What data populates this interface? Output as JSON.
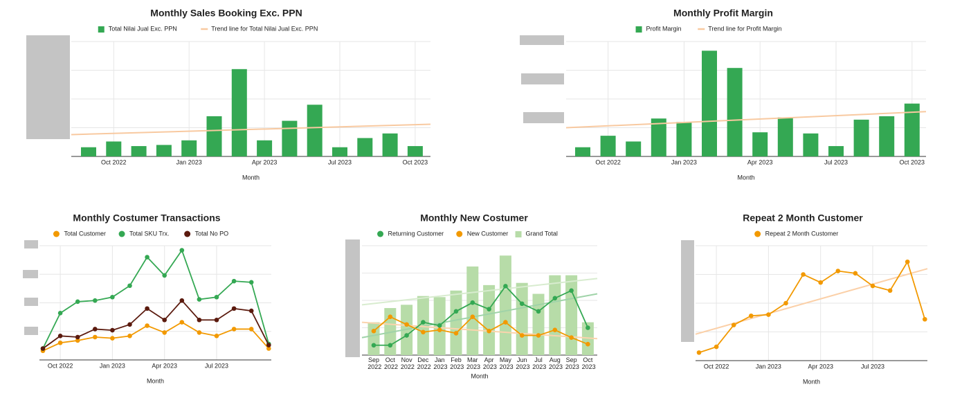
{
  "chart_data": [
    {
      "type": "bar",
      "title": "Monthly Sales Booking Exc. PPN",
      "x_label": "Month",
      "categories": [
        null,
        "Oct 2022",
        null,
        null,
        "Jan 2023",
        null,
        null,
        "Apr 2023",
        null,
        null,
        "Jul 2023",
        null,
        null,
        "Oct 2023"
      ],
      "series": [
        {
          "name": "Total Nilai Jual Exc. PPN",
          "color": "#34a853",
          "values": [
            8,
            13,
            9,
            10,
            14,
            35,
            76,
            14,
            31,
            45,
            8,
            16,
            20,
            9
          ]
        }
      ],
      "trendlines": [
        {
          "name": "Trend line for Total Nilai Jual Exc. PPN",
          "color": "#f8c9a0",
          "values": [
            19,
            28
          ]
        }
      ],
      "ylim": [
        0,
        100
      ]
    },
    {
      "type": "bar",
      "title": "Monthly Profit Margin",
      "x_label": "Month",
      "categories": [
        null,
        "Oct 2022",
        null,
        null,
        "Jan 2023",
        null,
        null,
        "Apr 2023",
        null,
        null,
        "Jul 2023",
        null,
        null,
        "Oct 2023"
      ],
      "series": [
        {
          "name": "Profit Margin",
          "color": "#34a853",
          "values": [
            8,
            18,
            13,
            33,
            30,
            92,
            77,
            21,
            34,
            20,
            9,
            32,
            35,
            46
          ]
        }
      ],
      "trendlines": [
        {
          "name": "Trend line for Profit Margin",
          "color": "#f8c9a0",
          "values": [
            25,
            39
          ]
        }
      ],
      "ylim": [
        0,
        100
      ]
    },
    {
      "type": "line",
      "title": "Monthly Costumer Transactions",
      "x_label": "Month",
      "categories": [
        null,
        "Oct 2022",
        null,
        null,
        "Jan 2023",
        null,
        null,
        "Apr 2023",
        null,
        null,
        "Jul 2023",
        null,
        null,
        null
      ],
      "series": [
        {
          "name": "Total Customer",
          "color": "#f29900",
          "values": [
            8,
            15,
            17,
            20,
            19,
            21,
            30,
            24,
            33,
            24,
            21,
            27,
            27,
            10
          ]
        },
        {
          "name": "Total SKU Trx.",
          "color": "#34a853",
          "values": [
            10,
            41,
            51,
            52,
            55,
            65,
            90,
            74,
            96,
            53,
            55,
            69,
            68,
            14
          ]
        },
        {
          "name": "Total No PO",
          "color": "#5b1a0e",
          "values": [
            10,
            21,
            20,
            27,
            26,
            31,
            45,
            35,
            52,
            35,
            35,
            45,
            43,
            13
          ]
        }
      ],
      "trendlines": [],
      "ylim": [
        0,
        100
      ]
    },
    {
      "type": "combo",
      "title": "Monthly New Costumer",
      "x_label": "Month",
      "categories": [
        "Sep 2022",
        "Oct 2022",
        "Nov 2022",
        "Dec 2022",
        "Jan 2023",
        "Feb 2023",
        "Mar 2023",
        "Apr 2023",
        "May 2023",
        "Jun 2023",
        "Jul 2023",
        "Aug 2023",
        "Sep 2023",
        "Oct 2023"
      ],
      "series": [
        {
          "name": "Returning Customer",
          "color": "#34a853",
          "mark": "line",
          "values": [
            9,
            9,
            18,
            30,
            27,
            40,
            48,
            42,
            63,
            47,
            40,
            52,
            59,
            25
          ]
        },
        {
          "name": "New Customer",
          "color": "#f29900",
          "mark": "line",
          "values": [
            22,
            35,
            28,
            21,
            23,
            20,
            35,
            22,
            30,
            18,
            18,
            23,
            16,
            10
          ]
        },
        {
          "name": "Grand Total",
          "color": "#b7dca8",
          "mark": "bar",
          "values": [
            30,
            43,
            46,
            54,
            53,
            59,
            81,
            64,
            91,
            66,
            56,
            73,
            73,
            30
          ]
        }
      ],
      "trendlines": [
        {
          "color": "#d8eccf",
          "values": [
            46,
            70
          ]
        },
        {
          "color": "#9fd3a8",
          "values": [
            16,
            56
          ]
        },
        {
          "color": "#fbd4ad",
          "values": [
            30,
            15
          ]
        }
      ],
      "ylim": [
        0,
        100
      ]
    },
    {
      "type": "line",
      "title": "Repeat 2 Month Customer",
      "x_label": "Month",
      "categories": [
        null,
        "Oct 2022",
        null,
        null,
        "Jan 2023",
        null,
        null,
        "Apr 2023",
        null,
        null,
        "Jul 2023",
        null,
        null,
        null
      ],
      "series": [
        {
          "name": "Repeat 2 Month Customer",
          "color": "#f29900",
          "values": [
            7,
            12,
            31,
            39,
            40,
            50,
            75,
            68,
            78,
            76,
            65,
            61,
            86,
            36
          ]
        }
      ],
      "trendlines": [
        {
          "color": "#fbd0a8",
          "values": [
            23,
            80
          ]
        }
      ],
      "ylim": [
        0,
        100
      ]
    }
  ]
}
